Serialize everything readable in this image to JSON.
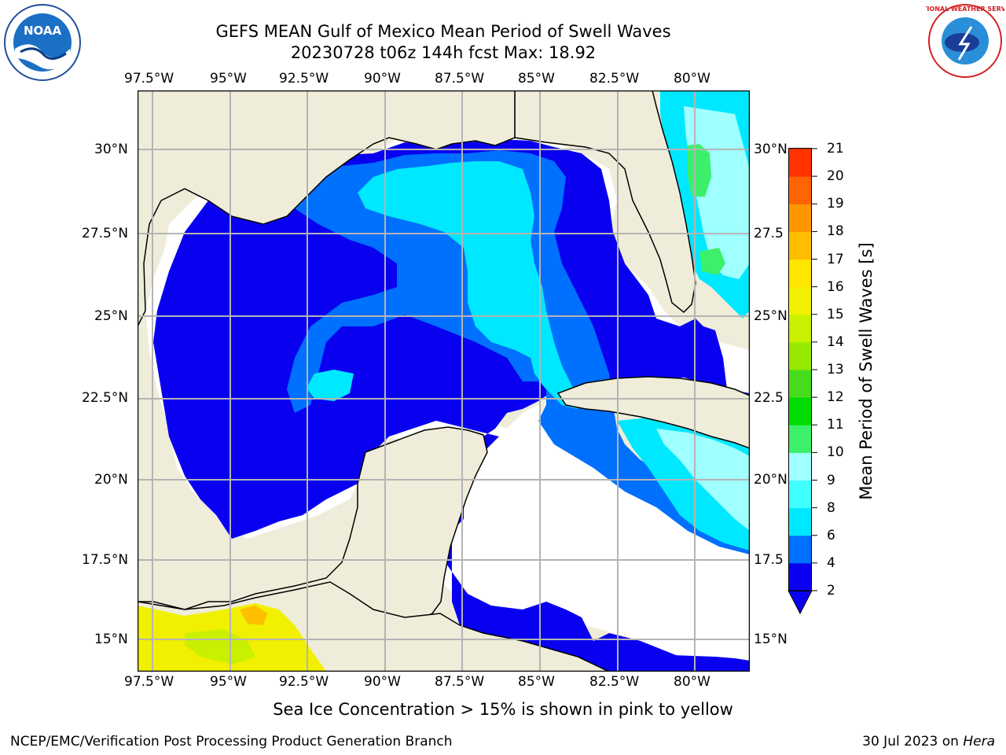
{
  "title": {
    "line1": "GEFS MEAN Gulf of Mexico Mean Period of Swell Waves",
    "line2": "20230728 t06z 144h fcst   Max: 18.92"
  },
  "logos": {
    "left": {
      "icon": "noaa-logo",
      "text": "NOAA"
    },
    "right": {
      "icon": "nws-logo",
      "text": "NATIONAL WEATHER SERVICE"
    }
  },
  "map": {
    "x_ticks": [
      "97.5°W",
      "95°W",
      "92.5°W",
      "90°W",
      "87.5°W",
      "85°W",
      "82.5°W",
      "80°W"
    ],
    "y_ticks_left": [
      "30°N",
      "27.5°N",
      "25°N",
      "22.5°N",
      "20°N",
      "17.5°N",
      "15°N"
    ],
    "y_ticks_right": [
      "30°N",
      "27.5",
      "25°N",
      "22.5",
      "20°N",
      "17.5",
      "15°N"
    ],
    "lon_range": [
      -98,
      -78.3
    ],
    "lat_range": [
      14,
      31.7
    ],
    "colors": {
      "land": "#efedda",
      "ocean_missing": "#ffffff",
      "grid": "#b4b4b4"
    }
  },
  "colorbar": {
    "label": "Mean Period of Swell Waves [s]",
    "ticks": [
      "2",
      "4",
      "6",
      "8",
      "9",
      "10",
      "11",
      "12",
      "13",
      "14",
      "15",
      "16",
      "17",
      "18",
      "19",
      "20",
      "21"
    ],
    "colors": [
      "#0a00f0",
      "#0070ff",
      "#00e8ff",
      "#40ffff",
      "#a0ffff",
      "#3cf06a",
      "#00dc00",
      "#46dc1a",
      "#96e800",
      "#c8f000",
      "#f0f000",
      "#ffe600",
      "#ffbe00",
      "#ff9600",
      "#ff6400",
      "#ff3200",
      "#ff0000"
    ]
  },
  "caption": "Sea Ice Concentration > 15% is shown in pink to yellow",
  "footer": {
    "left": "NCEP/EMC/Verification Post Processing Product Generation Branch",
    "right_prefix": "30 Jul 2023 on ",
    "right_machine": "Hera"
  }
}
